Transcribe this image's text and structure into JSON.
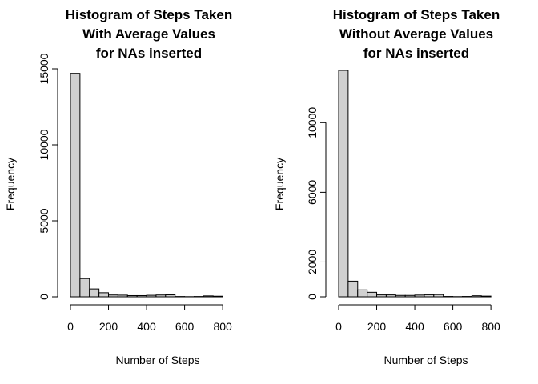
{
  "chart_data": [
    {
      "type": "bar",
      "title": [
        "Histogram of Steps Taken",
        "With Average Values",
        "for NAs inserted"
      ],
      "xlabel": "Number of Steps",
      "ylabel": "Frequency",
      "bin_width": 50,
      "bin_start": 0,
      "values": [
        14700,
        1200,
        520,
        270,
        120,
        110,
        80,
        80,
        100,
        120,
        130,
        20,
        10,
        20,
        60,
        40
      ],
      "xlim": [
        0,
        850
      ],
      "ylim": [
        0,
        15000
      ],
      "xticks": [
        0,
        200,
        400,
        600,
        800
      ],
      "yticks": [
        0,
        5000,
        10000,
        15000
      ]
    },
    {
      "type": "bar",
      "title": [
        "Histogram of Steps Taken",
        "Without Average Values",
        "for NAs inserted"
      ],
      "xlabel": "Number of Steps",
      "ylabel": "Frequency",
      "bin_width": 50,
      "bin_start": 0,
      "values": [
        13000,
        900,
        400,
        260,
        110,
        110,
        80,
        80,
        100,
        120,
        130,
        20,
        10,
        20,
        60,
        40
      ],
      "xlim": [
        0,
        850
      ],
      "ylim": [
        0,
        13000
      ],
      "xticks": [
        0,
        200,
        400,
        600,
        800
      ],
      "yticks": [
        0,
        2000,
        6000,
        10000
      ]
    }
  ]
}
